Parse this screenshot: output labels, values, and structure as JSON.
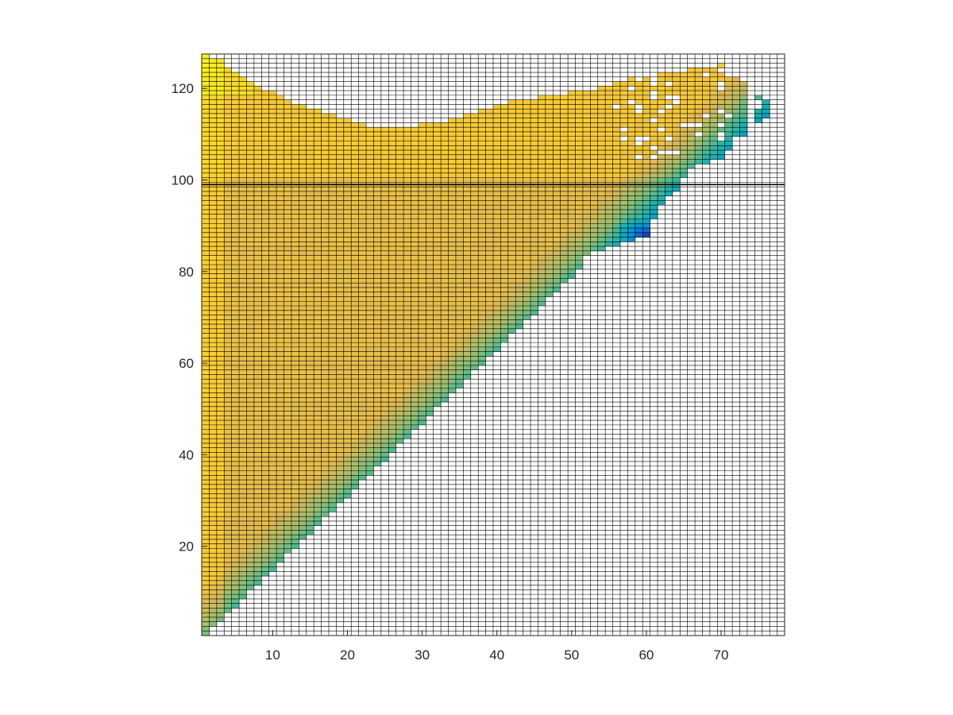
{
  "chart_data": {
    "type": "heatmap",
    "title": "",
    "xlabel": "",
    "ylabel": "",
    "xlim": [
      1,
      78
    ],
    "ylim": [
      1,
      127
    ],
    "x_ticks": [
      10,
      20,
      30,
      40,
      50,
      60,
      70
    ],
    "y_ticks": [
      20,
      40,
      60,
      80,
      100,
      120
    ],
    "grid": true,
    "grid_color": "#000000",
    "legend": "none",
    "colormap": "parula",
    "color_range": [
      0,
      1
    ],
    "reference_line": {
      "orientation": "horizontal",
      "y": 99,
      "color": "#000000"
    },
    "region_description": {
      "lower_boundary_y_equals_x_times": 1.6,
      "top_boundary": [
        [
          1,
          127
        ],
        [
          3,
          126
        ],
        [
          6,
          122
        ],
        [
          10,
          119
        ],
        [
          14,
          116
        ],
        [
          18,
          114
        ],
        [
          22,
          112
        ],
        [
          26,
          111
        ],
        [
          30,
          112
        ],
        [
          34,
          113
        ],
        [
          38,
          115
        ],
        [
          42,
          117
        ],
        [
          46,
          118
        ],
        [
          50,
          119
        ],
        [
          54,
          120
        ],
        [
          58,
          122
        ],
        [
          62,
          123
        ],
        [
          66,
          124
        ],
        [
          70,
          125
        ],
        [
          73,
          121
        ]
      ],
      "right_boundary": [
        [
          1,
          1
        ],
        [
          52,
          84
        ],
        [
          56,
          86
        ],
        [
          60,
          88
        ],
        [
          62,
          95
        ],
        [
          64,
          98
        ],
        [
          66,
          103
        ],
        [
          70,
          105
        ],
        [
          73,
          110
        ],
        [
          76,
          114
        ]
      ],
      "value_at_left_edge": 0.8,
      "value_near_diagonal": 0.55,
      "min_value_location": [
        60,
        88
      ],
      "min_value": 0.05,
      "top_left_peak": [
        1,
        127
      ],
      "top_left_peak_value": 0.95
    }
  }
}
